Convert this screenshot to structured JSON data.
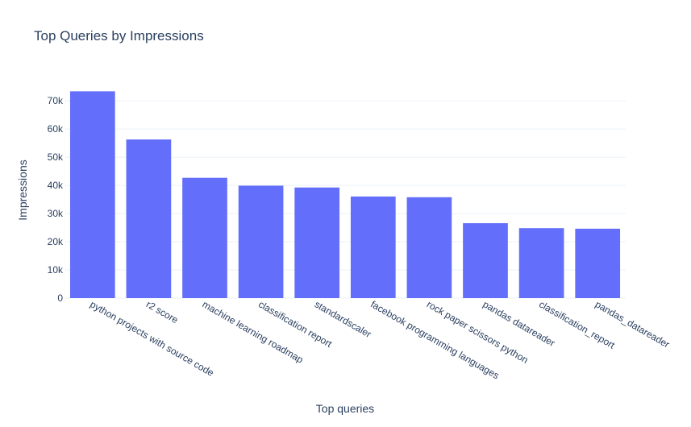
{
  "chart_data": {
    "type": "bar",
    "title": "Top Queries by Impressions",
    "xlabel": "Top queries",
    "ylabel": "Impressions",
    "categories": [
      "python projects with source code",
      "r2 score",
      "machine learning roadmap",
      "classification report",
      "standardscaler",
      "facebook programming languages",
      "rock paper scissors python",
      "pandas datareader",
      "classification_report",
      "pandas_datareader"
    ],
    "values": [
      73380,
      56290,
      42690,
      39890,
      39250,
      36060,
      35800,
      26580,
      24820,
      24630
    ],
    "ylim": [
      0,
      77200
    ],
    "yticks": [
      0,
      10000,
      20000,
      30000,
      40000,
      50000,
      60000,
      70000
    ],
    "ytick_labels": [
      "0",
      "10k",
      "20k",
      "30k",
      "40k",
      "50k",
      "60k",
      "70k"
    ],
    "grid": true,
    "legend": false,
    "colors": {
      "bar": "#636efa",
      "text": "#2a3f5f",
      "grid": "#ebf0f8",
      "background": "#ffffff"
    }
  }
}
